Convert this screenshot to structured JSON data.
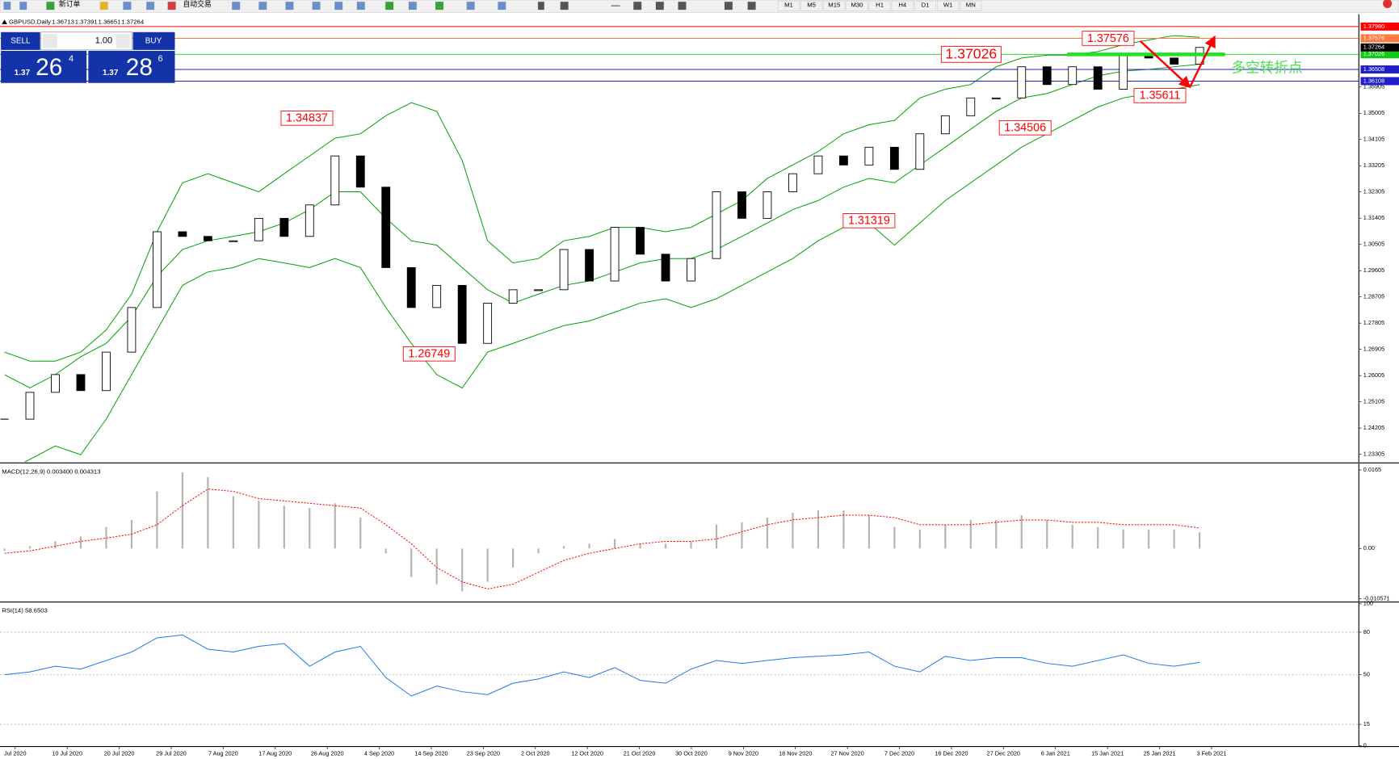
{
  "toolbar": {
    "buttons": [
      "新订单",
      "自动交易"
    ],
    "timeframes": [
      "M1",
      "M5",
      "M15",
      "M30",
      "H1",
      "H4",
      "D1",
      "W1",
      "MN"
    ]
  },
  "header": {
    "symbol": "GBPUSD,Daily",
    "ohlc": [
      1.36713,
      1.37391,
      1.36651,
      1.37264
    ]
  },
  "trade_panel": {
    "sell": "SELL",
    "buy": "BUY",
    "lot": "1.00",
    "bid": {
      "prefix": "1.37",
      "big": "26",
      "small": "4"
    },
    "ask": {
      "prefix": "1.37",
      "big": "28",
      "small": "6"
    }
  },
  "chart_data": [
    {
      "type": "candlestick",
      "close": [
        1.2451,
        1.2543,
        1.2604,
        1.2549,
        1.2681,
        1.2834,
        1.3094,
        1.3078,
        1.3063,
        1.3063,
        1.314,
        1.3078,
        1.3186,
        1.3354,
        1.3247,
        1.2971,
        1.2834,
        1.291,
        1.2711,
        1.2849,
        1.2895,
        1.2895,
        1.3033,
        1.2925,
        1.3109,
        1.3017,
        1.2925,
        1.3002,
        1.3231,
        1.314,
        1.3231,
        1.3293,
        1.3354,
        1.3323,
        1.3384,
        1.3308,
        1.343,
        1.3492,
        1.3553,
        1.3553,
        1.366,
        1.3599,
        1.366,
        1.3583,
        1.37,
        1.369,
        1.3669,
        1.37264
      ],
      "bands": {
        "color": "#00a000",
        "upper": [
          1.2681,
          1.265,
          1.265,
          1.2681,
          1.2757,
          1.288,
          1.3094,
          1.3262,
          1.3293,
          1.3262,
          1.3231,
          1.3293,
          1.3354,
          1.3415,
          1.343,
          1.3492,
          1.3537,
          1.3507,
          1.3339,
          1.3063,
          1.2987,
          1.3002,
          1.3063,
          1.3078,
          1.3109,
          1.3109,
          1.3094,
          1.3109,
          1.3155,
          1.3201,
          1.3277,
          1.3323,
          1.3369,
          1.343,
          1.3461,
          1.3476,
          1.3553,
          1.3583,
          1.3599,
          1.366,
          1.369,
          1.37,
          1.37,
          1.3712,
          1.3736,
          1.3752,
          1.3767,
          1.3761
        ],
        "middle": [
          1.2604,
          1.2558,
          1.2604,
          1.2665,
          1.2711,
          1.2803,
          1.2941,
          1.3033,
          1.3063,
          1.3078,
          1.3094,
          1.3124,
          1.317,
          1.3231,
          1.3231,
          1.314,
          1.3063,
          1.3048,
          1.2971,
          1.2895,
          1.2849,
          1.288,
          1.291,
          1.2925,
          1.2956,
          1.2987,
          1.3002,
          1.3002,
          1.3033,
          1.3078,
          1.3124,
          1.317,
          1.3201,
          1.3247,
          1.3277,
          1.3262,
          1.3323,
          1.3384,
          1.3446,
          1.3507,
          1.3553,
          1.3568,
          1.3599,
          1.3629,
          1.3645,
          1.3651,
          1.366,
          1.3669
        ],
        "lower": [
          1.2268,
          1.2313,
          1.2359,
          1.2329,
          1.2451,
          1.2604,
          1.2757,
          1.291,
          1.2956,
          1.2971,
          1.3002,
          1.2987,
          1.2971,
          1.3002,
          1.2971,
          1.2834,
          1.2711,
          1.2604,
          1.2558,
          1.2681,
          1.2711,
          1.2742,
          1.2772,
          1.2788,
          1.2818,
          1.2849,
          1.2864,
          1.2834,
          1.2864,
          1.291,
          1.2956,
          1.3002,
          1.3063,
          1.3109,
          1.3124,
          1.3048,
          1.3124,
          1.3201,
          1.3262,
          1.3323,
          1.3384,
          1.343,
          1.3476,
          1.3522,
          1.3553,
          1.3568,
          1.3583,
          1.3599
        ]
      },
      "ylim": [
        1.2304,
        1.3834
      ],
      "yticks": [
        1.35905,
        1.35005,
        1.34105,
        1.33205,
        1.32305,
        1.31405,
        1.30505,
        1.29605,
        1.28705,
        1.27805,
        1.26905,
        1.26005,
        1.25105,
        1.24205,
        1.23305
      ],
      "levels": [
        {
          "value": 1.3798,
          "label": "1.37980",
          "color": "#ff0000"
        },
        {
          "value": 1.37576,
          "label": "1.37576",
          "color": "#ff7a3c"
        },
        {
          "value": 1.37026,
          "label": "1.37026",
          "color": "#14c814"
        },
        {
          "value": 1.36508,
          "label": "1.36508",
          "color": "#1e1ec8"
        },
        {
          "value": 1.36108,
          "label": "1.36108",
          "color": "#1e1ec8"
        }
      ],
      "current_price": {
        "value": 1.37264,
        "label": "1.37264"
      },
      "annotations": [
        1.34837,
        1.26749,
        1.31319,
        1.34506,
        1.37026,
        1.37576,
        1.35611
      ],
      "note": "多空转折点"
    },
    {
      "type": "macd",
      "title": "MACD(12,26,9) 0.003400 0.004313",
      "histogram": [
        -0.0005,
        0.0005,
        0.0015,
        0.0025,
        0.0045,
        0.006,
        0.012,
        0.016,
        0.015,
        0.011,
        0.01,
        0.009,
        0.0085,
        0.0095,
        0.0065,
        -0.001,
        -0.006,
        -0.0075,
        -0.009,
        -0.007,
        -0.004,
        -0.001,
        0.0005,
        0.001,
        0.002,
        0.001,
        0.001,
        0.0015,
        0.005,
        0.0055,
        0.0065,
        0.0075,
        0.008,
        0.008,
        0.007,
        0.0045,
        0.004,
        0.005,
        0.006,
        0.006,
        0.007,
        0.006,
        0.005,
        0.0045,
        0.004,
        0.004,
        0.004,
        0.0034
      ],
      "signal": [
        -0.001,
        -0.0005,
        0.0005,
        0.0015,
        0.0022,
        0.003,
        0.005,
        0.009,
        0.0125,
        0.012,
        0.0105,
        0.01,
        0.0095,
        0.009,
        0.0085,
        0.005,
        0.001,
        -0.004,
        -0.007,
        -0.0085,
        -0.0075,
        -0.005,
        -0.0025,
        -0.001,
        0,
        0.001,
        0.0015,
        0.0015,
        0.002,
        0.0035,
        0.005,
        0.006,
        0.0065,
        0.007,
        0.007,
        0.0065,
        0.005,
        0.005,
        0.005,
        0.0055,
        0.006,
        0.006,
        0.0055,
        0.0055,
        0.005,
        0.005,
        0.005,
        0.004313
      ],
      "histogram_color": "#b4b4b4",
      "signal_color": "#ff0000",
      "ylim": [
        -0.01087,
        0.0178
      ],
      "yticks": [
        0.0165,
        {
          "value": 0,
          "label": "0.00"
        },
        -0.010571
      ]
    },
    {
      "type": "line",
      "title": "RSI(14) 58.6503",
      "values": [
        50,
        52,
        56,
        54,
        60,
        66,
        76,
        78,
        68,
        66,
        70,
        72,
        56,
        66,
        70,
        48,
        35,
        42,
        38,
        36,
        44,
        47,
        52,
        48,
        55,
        46,
        44,
        54,
        60,
        58,
        60,
        62,
        63,
        64,
        66,
        56,
        52,
        63,
        60,
        62,
        62,
        58,
        56,
        60,
        64,
        58,
        56,
        58.6503
      ],
      "color": "#1e78e6",
      "ylim": [
        0,
        100
      ],
      "yticks": [
        100,
        80,
        50,
        15,
        0
      ],
      "grid": true,
      "x_axis_labels": [
        "Jul 2020",
        "10 Jul 2020",
        "20 Jul 2020",
        "29 Jul 2020",
        "7 Aug 2020",
        "17 Aug 2020",
        "26 Aug 2020",
        "4 Sep 2020",
        "14 Sep 2020",
        "23 Sep 2020",
        "2 Oct 2020",
        "12 Oct 2020",
        "21 Oct 2020",
        "30 Oct 2020",
        "9 Nov 2020",
        "18 Nov 2020",
        "27 Nov 2020",
        "7 Dec 2020",
        "16 Dec 2020",
        "27 Dec 2020",
        "6 Jan 2021",
        "15 Jan 2021",
        "25 Jan 2021",
        "3 Feb 2021"
      ]
    }
  ]
}
